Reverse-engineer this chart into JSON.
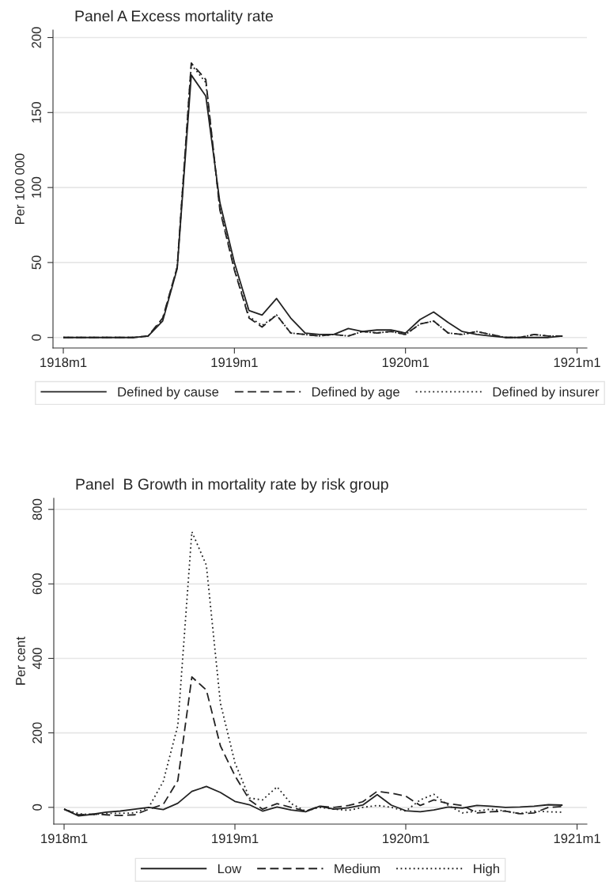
{
  "chart_data": [
    {
      "type": "line",
      "title": "Panel A Excess mortality rate",
      "ylabel": "Per 100 000",
      "x": [
        "1918-01",
        "1918-02",
        "1918-03",
        "1918-04",
        "1918-05",
        "1918-06",
        "1918-07",
        "1918-08",
        "1918-09",
        "1918-10",
        "1918-11",
        "1918-12",
        "1919-01",
        "1919-02",
        "1919-03",
        "1919-04",
        "1919-05",
        "1919-06",
        "1919-07",
        "1919-08",
        "1919-09",
        "1919-10",
        "1919-11",
        "1919-12",
        "1920-01",
        "1920-02",
        "1920-03",
        "1920-04",
        "1920-05",
        "1920-06",
        "1920-07",
        "1920-08",
        "1920-09",
        "1920-10",
        "1920-11",
        "1920-12"
      ],
      "series": [
        {
          "name": "Defined by cause",
          "color": "#222222",
          "line_style": "solid",
          "values": [
            0,
            0,
            0,
            0,
            0,
            0,
            1,
            11,
            46,
            175,
            161,
            90,
            50,
            18,
            15,
            26,
            13,
            3,
            2,
            2,
            6,
            4,
            5,
            5,
            3,
            12,
            17,
            10,
            4,
            2,
            1,
            0,
            0,
            0,
            0,
            1
          ]
        },
        {
          "name": "Defined by age",
          "color": "#222222",
          "line_style": "dashed",
          "values": [
            0,
            0,
            0,
            0,
            0,
            0,
            1,
            13,
            47,
            183,
            172,
            85,
            45,
            13,
            7,
            15,
            3,
            2,
            1,
            2,
            1,
            4,
            3,
            4,
            2,
            9,
            11,
            3,
            2,
            4,
            2,
            0,
            0,
            2,
            1,
            1
          ]
        },
        {
          "name": "Defined by insurer",
          "color": "#222222",
          "line_style": "dotted",
          "values": [
            0,
            0,
            0,
            0,
            0,
            0,
            1,
            12,
            47,
            182,
            170,
            86,
            46,
            14,
            8,
            15,
            3,
            2,
            1,
            2,
            1,
            4,
            3,
            4,
            2,
            9,
            11,
            3,
            2,
            4,
            2,
            0,
            0,
            2,
            1,
            1
          ]
        }
      ],
      "xlim": [
        "1917-12-10",
        "1921-01-22"
      ],
      "xticks": [
        {
          "value": "1918-01",
          "label": "1918m1"
        },
        {
          "value": "1919-01",
          "label": "1919m1"
        },
        {
          "value": "1920-01",
          "label": "1920m1"
        },
        {
          "value": "1921-01",
          "label": "1921m1"
        }
      ],
      "ylim": [
        -7,
        205
      ],
      "yticks": [
        0,
        50,
        100,
        150,
        200
      ],
      "grid": "y",
      "legend": "bottom"
    },
    {
      "type": "line",
      "title": "Panel  B Growth in mortality rate by risk group",
      "ylabel": "Per cent",
      "x": [
        "1918-01",
        "1918-02",
        "1918-03",
        "1918-04",
        "1918-05",
        "1918-06",
        "1918-07",
        "1918-08",
        "1918-09",
        "1918-10",
        "1918-11",
        "1918-12",
        "1919-01",
        "1919-02",
        "1919-03",
        "1919-04",
        "1919-05",
        "1919-06",
        "1919-07",
        "1919-08",
        "1919-09",
        "1919-10",
        "1919-11",
        "1919-12",
        "1920-01",
        "1920-02",
        "1920-03",
        "1920-04",
        "1920-05",
        "1920-06",
        "1920-07",
        "1920-08",
        "1920-09",
        "1920-10",
        "1920-11",
        "1920-12"
      ],
      "series": [
        {
          "name": "Low",
          "color": "#222222",
          "line_style": "solid",
          "values": [
            -5,
            -23,
            -19,
            -13,
            -10,
            -5,
            0,
            -6,
            11,
            43,
            56,
            40,
            16,
            7,
            -10,
            1,
            -7,
            -12,
            3,
            -5,
            -1,
            6,
            34,
            6,
            -9,
            -12,
            -7,
            1,
            -2,
            5,
            3,
            0,
            1,
            3,
            7,
            6
          ]
        },
        {
          "name": "Medium",
          "color": "#222222",
          "line_style": "dashed",
          "values": [
            -5,
            -20,
            -18,
            -20,
            -22,
            -20,
            -5,
            8,
            72,
            350,
            315,
            165,
            85,
            20,
            -5,
            10,
            0,
            -10,
            3,
            0,
            5,
            15,
            43,
            38,
            30,
            5,
            20,
            10,
            5,
            -15,
            -12,
            -10,
            -17,
            -15,
            0,
            2
          ]
        },
        {
          "name": "High",
          "color": "#222222",
          "line_style": "dotted",
          "values": [
            -5,
            -17,
            -20,
            -16,
            -16,
            -15,
            0,
            70,
            220,
            740,
            650,
            280,
            120,
            25,
            20,
            55,
            10,
            -10,
            0,
            -5,
            -8,
            0,
            5,
            0,
            -10,
            20,
            35,
            5,
            -15,
            -10,
            -5,
            -10,
            -17,
            -10,
            -12,
            -13
          ]
        }
      ],
      "xlim": [
        "1917-12-10",
        "1921-01-22"
      ],
      "xticks": [
        {
          "value": "1918-01",
          "label": "1918m1"
        },
        {
          "value": "1919-01",
          "label": "1919m1"
        },
        {
          "value": "1920-01",
          "label": "1920m1"
        },
        {
          "value": "1921-01",
          "label": "1921m1"
        }
      ],
      "ylim": [
        -45,
        830
      ],
      "yticks": [
        0,
        200,
        400,
        600,
        800
      ],
      "grid": "y",
      "legend": "bottom"
    }
  ]
}
